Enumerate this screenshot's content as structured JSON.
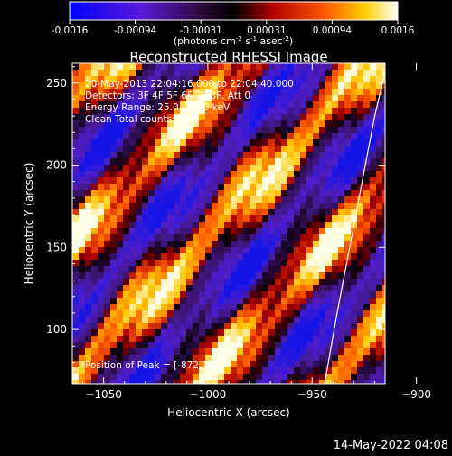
{
  "colorbar": {
    "ticks": [
      "-0.0016",
      "-0.00094",
      "-0.00031",
      "0.00031",
      "0.00094",
      "0.0016"
    ],
    "units_main": "(photons cm",
    "units_exp1": "-2",
    "units_mid": " s",
    "units_exp2": "-1",
    "units_mid2": " asec",
    "units_exp3": "-2",
    "units_end": ")"
  },
  "chart_data": {
    "type": "heatmap",
    "title": "Reconstructed RHESSI Image",
    "xlabel": "Heliocentric X (arcsec)",
    "ylabel": "Heliocentric Y (arcsec)",
    "xlim": [
      -1065,
      -915
    ],
    "ylim": [
      67,
      262
    ],
    "xticks": [
      -1050,
      -1000,
      -950,
      -900
    ],
    "yticks": [
      100,
      150,
      200,
      250
    ],
    "xtick_labels": [
      "−1050",
      "−1000",
      "−950",
      "−900"
    ],
    "ytick_labels": [
      "100",
      "150",
      "200",
      "250"
    ],
    "colorbar_range": [
      -0.0016,
      0.0016
    ],
    "colormap": "blue-purple-black-red-yellow-white",
    "limb": [
      [
        -944,
        67
      ],
      [
        -938,
        110
      ],
      [
        -932,
        150
      ],
      [
        -926,
        190
      ],
      [
        -920,
        230
      ],
      [
        -914,
        262
      ]
    ],
    "annotations": [
      "20-May-2013 22:04:16.000 to 22:04:40.000",
      "Detectors: 3F 4F 5F 6F 7F 8F, Att 0",
      "Energy Range: 25.0 - 50.0 keV",
      "Clean     Total counts: 533."
    ],
    "peak_label": "Position of Peak = [-872,141]"
  },
  "footer": {
    "timestamp": "14-May-2022 04:08"
  }
}
